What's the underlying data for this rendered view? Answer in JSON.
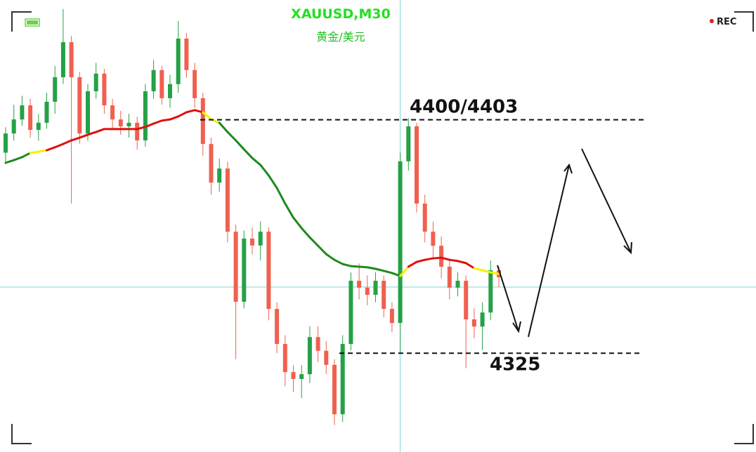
{
  "chart_data": {
    "type": "candlestick",
    "title": "XAUUSD,M30",
    "subtitle": "黄金/美元",
    "rec_label": "REC",
    "ylim": [
      4292,
      4443
    ],
    "up_color": "#25a146",
    "down_color": "#f0604f",
    "open": [
      4392.0,
      4398.4,
      4403.1,
      4407.8,
      4399.6,
      4402.0,
      4409.0,
      4417.2,
      4428.9,
      4417.2,
      4398.4,
      4412.5,
      4418.4,
      4407.8,
      4403.1,
      4400.8,
      4402.0,
      4396.1,
      4412.5,
      4419.6,
      4410.2,
      4414.9,
      4430.1,
      4419.6,
      4410.2,
      4394.9,
      4382.0,
      4386.7,
      4365.6,
      4342.2,
      4363.3,
      4361.0,
      4365.6,
      4339.8,
      4328.1,
      4318.7,
      4316.4,
      4318.0,
      4330.4,
      4325.8,
      4321.1,
      4304.6,
      4328.1,
      4349.2,
      4346.9,
      4344.5,
      4349.2,
      4339.8,
      4335.1,
      4389.1,
      4400.8,
      4375.0,
      4365.6,
      4360.9,
      4353.9,
      4346.9,
      4349.2,
      4336.3,
      4333.9,
      4338.6,
      4352.7
    ],
    "high": [
      4400.5,
      4408.0,
      4411.0,
      4410.0,
      4405.0,
      4412.0,
      4421.0,
      4440.0,
      4431.0,
      4419.0,
      4415.0,
      4422.0,
      4420.0,
      4410.0,
      4406.0,
      4405.0,
      4404.0,
      4415.0,
      4423.0,
      4421.0,
      4418.0,
      4436.0,
      4432.0,
      4422.0,
      4412.0,
      4397.0,
      4390.0,
      4389.0,
      4368.0,
      4366.0,
      4367.0,
      4369.0,
      4367.0,
      4342.0,
      4331.0,
      4321.0,
      4321.0,
      4334.0,
      4334.0,
      4329.0,
      4323.0,
      4331.0,
      4352.0,
      4355.0,
      4351.0,
      4352.0,
      4351.0,
      4342.0,
      4392.0,
      4403.5,
      4402.0,
      4378.0,
      4369.0,
      4364.0,
      4356.0,
      4352.0,
      4351.0,
      4340.0,
      4342.0,
      4356.0,
      4354.0
    ],
    "low": [
      4389.0,
      4396.0,
      4401.0,
      4397.0,
      4396.0,
      4400.0,
      4405.0,
      4415.0,
      4375.0,
      4395.0,
      4396.0,
      4410.0,
      4405.0,
      4400.0,
      4398.0,
      4397.0,
      4393.0,
      4394.0,
      4410.0,
      4408.0,
      4407.0,
      4412.0,
      4417.0,
      4407.0,
      4391.0,
      4378.0,
      4379.0,
      4362.0,
      4323.0,
      4340.0,
      4358.0,
      4356.0,
      4336.0,
      4325.0,
      4314.0,
      4312.0,
      4310.0,
      4315.0,
      4322.0,
      4318.0,
      4301.0,
      4302.0,
      4326.0,
      4343.0,
      4341.0,
      4342.0,
      4337.0,
      4332.0,
      4325.0,
      4386.0,
      4372.0,
      4362.0,
      4357.0,
      4350.0,
      4343.0,
      4344.0,
      4320.0,
      4330.0,
      4326.0,
      4336.0,
      4347.0
    ],
    "close": [
      4398.4,
      4403.1,
      4407.8,
      4399.6,
      4402.0,
      4409.0,
      4417.2,
      4428.9,
      4417.2,
      4398.4,
      4412.5,
      4418.4,
      4407.8,
      4403.1,
      4400.8,
      4402.0,
      4396.1,
      4412.5,
      4419.6,
      4410.2,
      4414.9,
      4430.1,
      4419.6,
      4410.2,
      4394.9,
      4382.0,
      4386.7,
      4365.6,
      4342.2,
      4363.3,
      4361.0,
      4365.6,
      4339.8,
      4328.1,
      4318.7,
      4316.4,
      4318.0,
      4330.4,
      4325.8,
      4321.1,
      4304.6,
      4328.1,
      4349.2,
      4346.9,
      4344.5,
      4349.2,
      4339.8,
      4335.1,
      4389.1,
      4400.8,
      4375.0,
      4365.6,
      4360.9,
      4353.9,
      4346.9,
      4349.2,
      4336.3,
      4333.9,
      4338.6,
      4352.7,
      4350.4
    ],
    "ma": {
      "values": [
        4388.6,
        4389.5,
        4390.5,
        4391.9,
        4392.3,
        4392.8,
        4393.8,
        4394.9,
        4396.1,
        4397.0,
        4398.0,
        4398.9,
        4399.9,
        4399.9,
        4399.9,
        4399.9,
        4399.9,
        4400.6,
        4401.7,
        4402.7,
        4403.1,
        4404.1,
        4405.5,
        4406.2,
        4405.5,
        4403.1,
        4402.0,
        4398.9,
        4396.1,
        4393.1,
        4390.2,
        4387.9,
        4384.4,
        4380.2,
        4375.0,
        4370.3,
        4366.8,
        4363.7,
        4360.9,
        4358.1,
        4356.2,
        4354.8,
        4354.1,
        4353.9,
        4353.7,
        4353.2,
        4352.5,
        4351.8,
        4350.8,
        4353.9,
        4355.5,
        4356.2,
        4356.7,
        4356.9,
        4356.2,
        4355.8,
        4355.1,
        4353.4,
        4352.7,
        4352.0,
        4351.5
      ],
      "colors": [
        "#1d8a1d",
        "#1d8a1d",
        "#1d8a1d",
        "#f2f200",
        "#f2f200",
        "#e01010",
        "#e01010",
        "#e01010",
        "#e01010",
        "#e01010",
        "#e01010",
        "#e01010",
        "#e01010",
        "#e01010",
        "#e01010",
        "#e01010",
        "#e01010",
        "#e01010",
        "#e01010",
        "#e01010",
        "#e01010",
        "#e01010",
        "#e01010",
        "#e01010",
        "#f2f200",
        "#f2f200",
        "#1d8a1d",
        "#1d8a1d",
        "#1d8a1d",
        "#1d8a1d",
        "#1d8a1d",
        "#1d8a1d",
        "#1d8a1d",
        "#1d8a1d",
        "#1d8a1d",
        "#1d8a1d",
        "#1d8a1d",
        "#1d8a1d",
        "#1d8a1d",
        "#1d8a1d",
        "#1d8a1d",
        "#1d8a1d",
        "#1d8a1d",
        "#1d8a1d",
        "#1d8a1d",
        "#1d8a1d",
        "#1d8a1d",
        "#1d8a1d",
        "#f2f200",
        "#e01010",
        "#e01010",
        "#e01010",
        "#e01010",
        "#e01010",
        "#e01010",
        "#e01010",
        "#e01010",
        "#f2f200",
        "#f2f200",
        "#f2f200",
        "#f5a000"
      ]
    },
    "levels": [
      {
        "label": "4400/4403",
        "value": 4403
      },
      {
        "label": "4325",
        "value": 4325
      }
    ],
    "crosshair": {
      "value": 4347.1,
      "index": 48
    }
  }
}
